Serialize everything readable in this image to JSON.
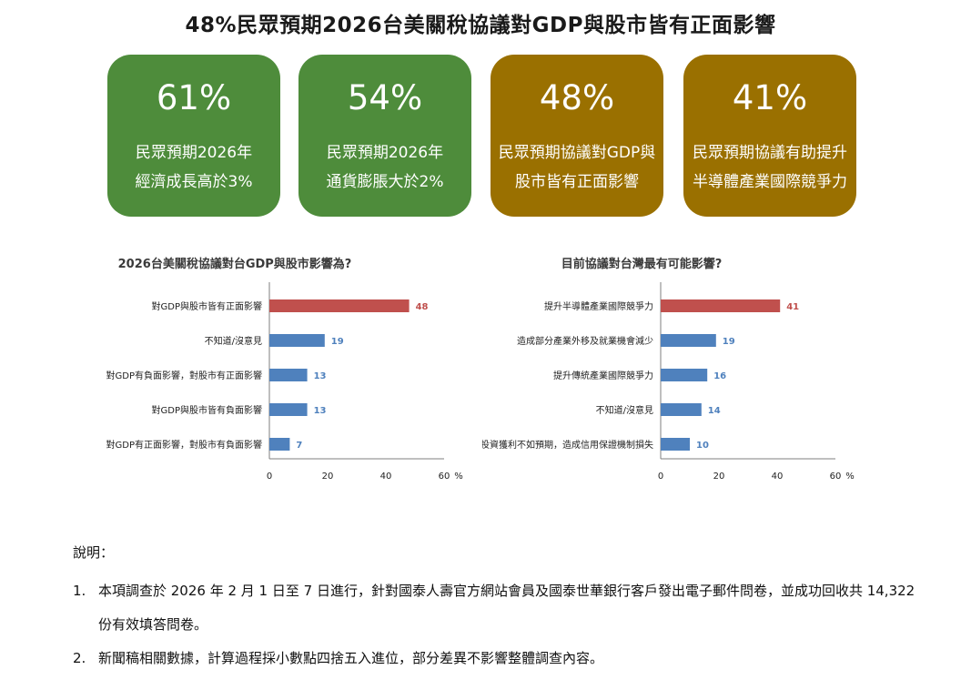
{
  "page": {
    "title": "48%民眾預期2026台美關稅協議對GDP與股市皆有正面影響"
  },
  "cards": [
    {
      "value": "61%",
      "line1": "民眾預期2026年",
      "line2": "經濟成長高於3%",
      "color": "#4e8c3b"
    },
    {
      "value": "54%",
      "line1": "民眾預期2026年",
      "line2": "通貨膨脹大於2%",
      "color": "#4e8c3b"
    },
    {
      "value": "48%",
      "line1": "民眾預期協議對GDP與",
      "line2": "股市皆有正面影響",
      "color": "#9a7000"
    },
    {
      "value": "41%",
      "line1": "民眾預期協議有助提升",
      "line2": "半導體產業國際競爭力",
      "color": "#9a7000"
    }
  ],
  "chart_data": [
    {
      "type": "bar",
      "orientation": "horizontal",
      "title": "2026台美關稅協議對台GDP與股市影響為?",
      "categories": [
        "對GDP與股市皆有正面影響",
        "不知道/沒意見",
        "對GDP有負面影響，對股市有正面影響",
        "對GDP與股市皆有負面影響",
        "對GDP有正面影響，對股市有負面影響"
      ],
      "values": [
        48,
        19,
        13,
        13,
        7
      ],
      "highlight_index": 0,
      "xlim": [
        0,
        60
      ],
      "ticks": [
        0,
        20,
        40,
        60
      ],
      "unit": "%",
      "grid": false
    },
    {
      "type": "bar",
      "orientation": "horizontal",
      "title": "目前協議對台灣最有可能影響?",
      "categories": [
        "提升半導體產業國際競爭力",
        "造成部分產業外移及就業機會減少",
        "提升傳統產業國際競爭力",
        "不知道/沒意見",
        "對美投資獲利不如預期，造成信用保證機制損失"
      ],
      "values": [
        41,
        19,
        16,
        14,
        10
      ],
      "highlight_index": 0,
      "xlim": [
        0,
        60
      ],
      "ticks": [
        0,
        20,
        40,
        60
      ],
      "unit": "%",
      "grid": false
    }
  ],
  "colors": {
    "highlight": "#c0504d",
    "bar": "#4f81bd",
    "value_text": "#4f81bd",
    "highlight_text": "#c0504d",
    "axis": "#7f7f7f"
  },
  "notes": {
    "heading": "說明：",
    "items": [
      {
        "num": "1.",
        "text": "本項調查於 2026 年 2 月 1 日至 7 日進行，針對國泰人壽官方網站會員及國泰世華銀行客戶發出電子郵件問卷，並成功回收共 14,322 份有效填答問卷。"
      },
      {
        "num": "2.",
        "text": "新聞稿相關數據，計算過程採小數點四捨五入進位，部分差異不影響整體調查內容。"
      }
    ]
  }
}
